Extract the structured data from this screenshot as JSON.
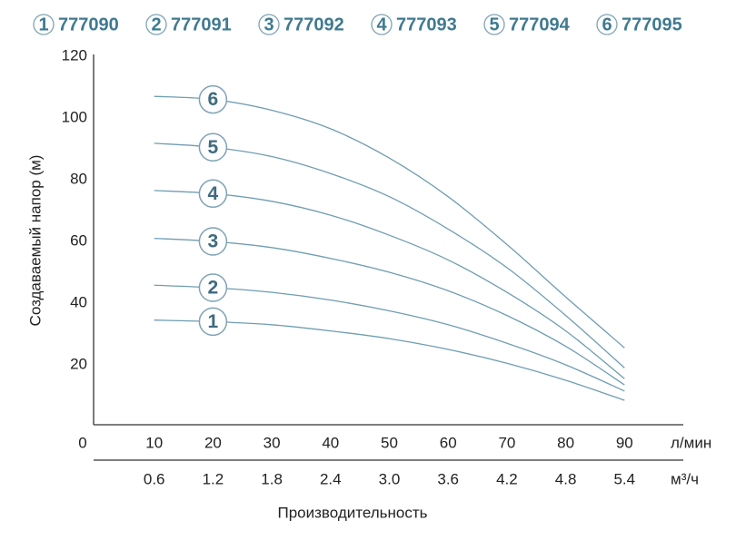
{
  "chart_data": {
    "type": "line",
    "ylabel": "Создаваемый напор (м)",
    "xlabel": "Производительность",
    "x_unit": "л/мин",
    "x2_unit": "м³/ч",
    "x": [
      10,
      20,
      30,
      40,
      50,
      60,
      70,
      80,
      90
    ],
    "xlim": [
      0,
      100
    ],
    "xticks": [
      0,
      10,
      20,
      30,
      40,
      50,
      60,
      70,
      80,
      90
    ],
    "x2lim": [
      0,
      6
    ],
    "x2ticks": [
      0.6,
      1.2,
      1.8,
      2.4,
      {
        "value": 3.0,
        "label": "3.0"
      },
      3.6,
      4.2,
      4.8,
      5.4
    ],
    "ylim": [
      0,
      120
    ],
    "yticks": [
      20,
      40,
      60,
      80,
      100,
      120
    ],
    "label_x": 20,
    "series": [
      {
        "name": "777090",
        "label": "1",
        "color": "#6f9db2",
        "values": [
          34.5,
          34,
          33,
          31,
          28.5,
          25,
          20.5,
          15,
          8.5
        ]
      },
      {
        "name": "777091",
        "label": "2",
        "color": "#6f9db2",
        "values": [
          45.8,
          45,
          43.5,
          41,
          37.5,
          33,
          27,
          20,
          11.5
        ]
      },
      {
        "name": "777092",
        "label": "3",
        "color": "#6f9db2",
        "values": [
          61,
          60,
          58,
          54.5,
          50,
          44,
          36,
          26,
          13.5
        ]
      },
      {
        "name": "777093",
        "label": "4",
        "color": "#6f9db2",
        "values": [
          76.5,
          75.5,
          73,
          68.5,
          62,
          54,
          43.5,
          31,
          15.5
        ]
      },
      {
        "name": "777094",
        "label": "5",
        "color": "#6f9db2",
        "values": [
          91.8,
          90.5,
          87.5,
          82,
          74.5,
          64,
          51.5,
          36,
          19
        ]
      },
      {
        "name": "777095",
        "label": "6",
        "color": "#6f9db2",
        "values": [
          107,
          106,
          102.5,
          96.5,
          87,
          74.5,
          59,
          42,
          25.5
        ]
      }
    ]
  }
}
